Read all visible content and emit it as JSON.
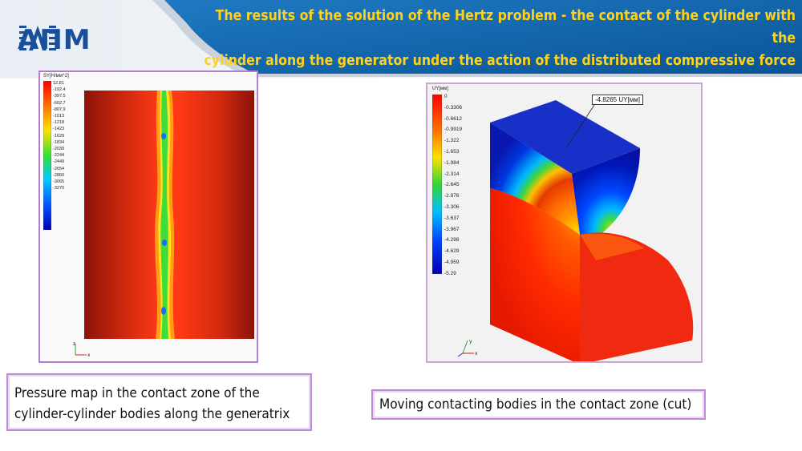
{
  "header": {
    "logo_text": "АПМ",
    "title_line1": "The results of the solution of the Hertz problem - the contact of the cylinder with the",
    "title_line2": "cylinder along the generator under the action of the distributed compressive force",
    "colors": {
      "banner": "#0e5fa6",
      "title": "#ffd21a",
      "logo": "#1a4f9c"
    }
  },
  "left_figure": {
    "legend_title": "SY[Н/мм^2]",
    "legend_values": [
      "12.81",
      "-192.4",
      "-397.5",
      "-602.7",
      "-807.9",
      "-1013",
      "-1218",
      "-1423",
      "-1629",
      "-1834",
      "-2039",
      "-2244",
      "-2449",
      "-2654",
      "-2860",
      "-3065",
      "-3270"
    ],
    "axis_labels": [
      "z",
      "x"
    ]
  },
  "right_figure": {
    "legend_title": "UY[мм]",
    "legend_values": [
      "0",
      "-0.3306",
      "-0.6612",
      "-0.9919",
      "-1.322",
      "-1.653",
      "-1.984",
      "-2.314",
      "-2.645",
      "-2.976",
      "-3.306",
      "-3.637",
      "-3.967",
      "-4.298",
      "-4.629",
      "-4.959",
      "-5.29"
    ],
    "annotation": "-4.8265 UY[мм]",
    "axis_labels": [
      "y",
      "x"
    ]
  },
  "captions": {
    "left_line1": "Pressure map in the contact zone of the",
    "left_line2": "cylinder-cylinder bodies along the generatrix",
    "right": "Moving contacting bodies in the contact zone (cut)"
  }
}
